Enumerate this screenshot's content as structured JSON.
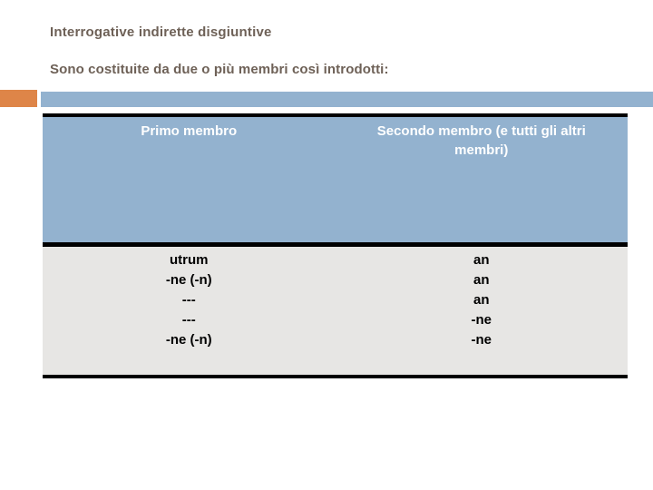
{
  "slide": {
    "title": "Interrogative indirette disgiuntive",
    "subtitle": "Sono costituite da due o più membri così introdotti:"
  },
  "colors": {
    "accent_orange": "#de8548",
    "accent_blue": "#93b2cf",
    "table_body_gray": "#e7e6e4",
    "heading_text": "#6e6157",
    "table_header_text": "#ffffff",
    "table_body_text": "#000000",
    "table_border": "#000000"
  },
  "table": {
    "headers": [
      "Primo membro",
      "Secondo membro (e tutti gli altri membri)"
    ],
    "rows": [
      [
        "utrum",
        "an"
      ],
      [
        "-ne (-n)",
        "an"
      ],
      [
        "---",
        "an"
      ],
      [
        "---",
        "-ne"
      ],
      [
        "-ne (-n)",
        "-ne"
      ]
    ]
  }
}
